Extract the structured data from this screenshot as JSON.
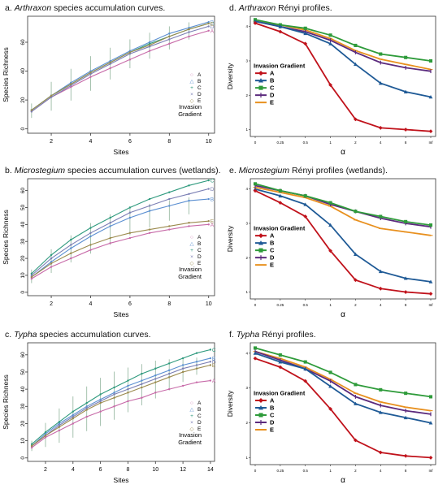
{
  "colors": {
    "A": "#c0121b",
    "B": "#1f5a96",
    "C": "#2e9b3a",
    "D": "#5b2a7d",
    "E": "#e8901e"
  },
  "acc_colors": {
    "A": "#c76aa8",
    "B": "#5b8fd1",
    "C": "#2f9a7e",
    "D": "#7b7fb4",
    "E": "#9b8a4d"
  },
  "panels": [
    {
      "id": "a",
      "prefix": "a. ",
      "italic": "Arthraxon",
      "suffix": " species accumulation curves.",
      "chart_data": {
        "type": "line",
        "xlabel": "Sites",
        "ylabel": "Species Richness",
        "xlim": [
          0.8,
          10.3
        ],
        "ylim": [
          -3,
          78
        ],
        "xticks": [
          2,
          4,
          6,
          8,
          10
        ],
        "yticks": [
          0,
          20,
          40,
          60
        ],
        "legend_title": [
          "Invasion",
          "Gradient"
        ],
        "legend_items": [
          {
            "label": "A",
            "symbol": "○"
          },
          {
            "label": "B",
            "symbol": "△"
          },
          {
            "label": "C",
            "symbol": "+"
          },
          {
            "label": "D",
            "symbol": "×"
          },
          {
            "label": "E",
            "symbol": "◇"
          }
        ],
        "x": [
          1,
          2,
          3,
          4,
          5,
          6,
          7,
          8,
          9,
          10
        ],
        "err": [
          5,
          10,
          11,
          12,
          11,
          10,
          9,
          8,
          6,
          0
        ],
        "series": [
          {
            "key": "A",
            "values": [
              12,
              22,
              29,
              36,
              42,
              48,
              54,
              59,
              64,
              68
            ]
          },
          {
            "key": "B",
            "values": [
              13,
              23,
              32,
              40,
              47,
              54,
              60,
              66,
              70,
              74
            ]
          },
          {
            "key": "C",
            "values": [
              13,
              23,
              31,
              39,
              46,
              53,
              59,
              64,
              69,
              73
            ]
          },
          {
            "key": "D",
            "values": [
              12,
              22,
              30,
              38,
              45,
              52,
              57,
              62,
              67,
              71
            ]
          },
          {
            "key": "E",
            "values": [
              13,
              23,
              31,
              39,
              46,
              53,
              58,
              64,
              69,
              73
            ]
          }
        ]
      }
    },
    {
      "id": "d",
      "prefix": "d. ",
      "italic": "Arthraxon",
      "suffix": " Rényi profiles.",
      "chart_data": {
        "type": "line",
        "xlabel": "α",
        "ylabel": "Diversity",
        "xticks": [
          "0",
          "0.25",
          "0.5",
          "1",
          "2",
          "4",
          "8",
          "Inf"
        ],
        "ylim": [
          0.8,
          4.3
        ],
        "yticks": [
          1,
          2,
          3,
          4
        ],
        "legend_title": "Invasion Gradient",
        "legend_items": [
          "A",
          "B",
          "C",
          "D",
          "E"
        ],
        "series": [
          {
            "key": "A",
            "values": [
              4.1,
              3.85,
              3.5,
              2.3,
              1.3,
              1.05,
              1.0,
              0.95
            ]
          },
          {
            "key": "B",
            "values": [
              4.15,
              4.0,
              3.8,
              3.5,
              2.9,
              2.35,
              2.1,
              1.95
            ]
          },
          {
            "key": "C",
            "values": [
              4.2,
              4.05,
              3.95,
              3.75,
              3.45,
              3.2,
              3.1,
              3.0
            ]
          },
          {
            "key": "D",
            "values": [
              4.15,
              4.0,
              3.85,
              3.6,
              3.25,
              2.95,
              2.8,
              2.7
            ]
          },
          {
            "key": "E",
            "values": [
              4.15,
              4.05,
              3.9,
              3.65,
              3.3,
              3.05,
              2.9,
              2.75
            ]
          }
        ]
      }
    },
    {
      "id": "b",
      "prefix": "b. ",
      "italic": "Microstegium",
      "suffix": " species accumulation curves (wetlands).",
      "chart_data": {
        "type": "line",
        "xlabel": "Sites",
        "ylabel": "Species Richness",
        "xlim": [
          0.8,
          10.3
        ],
        "ylim": [
          -2,
          67
        ],
        "xticks": [
          2,
          4,
          6,
          8,
          10
        ],
        "yticks": [
          0,
          10,
          20,
          30,
          40,
          50,
          60
        ],
        "legend_title": [
          "Invasion",
          "Gradient"
        ],
        "legend_items": [
          {
            "label": "A",
            "symbol": "○"
          },
          {
            "label": "B",
            "symbol": "△"
          },
          {
            "label": "C",
            "symbol": "+"
          },
          {
            "label": "D",
            "symbol": "×"
          },
          {
            "label": "E",
            "symbol": "◇"
          }
        ],
        "x": [
          1,
          2,
          3,
          4,
          5,
          6,
          7,
          8,
          9,
          10
        ],
        "err": [
          4,
          7,
          8,
          9,
          9,
          8,
          7,
          6,
          5,
          0
        ],
        "series": [
          {
            "key": "A",
            "values": [
              8,
              15,
              20,
              25,
              29,
              32,
              35,
              37,
              39,
              40
            ]
          },
          {
            "key": "B",
            "values": [
              9,
              18,
              26,
              33,
              39,
              44,
              48,
              51,
              54,
              55
            ]
          },
          {
            "key": "C",
            "values": [
              11,
              22,
              31,
              38,
              44,
              50,
              55,
              59,
              63,
              66
            ]
          },
          {
            "key": "D",
            "values": [
              10,
              20,
              28,
              35,
              41,
              47,
              51,
              55,
              58,
              61
            ]
          },
          {
            "key": "E",
            "values": [
              9,
              17,
              23,
              28,
              32,
              35,
              37,
              39,
              41,
              42
            ]
          }
        ]
      }
    },
    {
      "id": "e",
      "prefix": "e. ",
      "italic": "Microstegium",
      "suffix": " Rényi profiles (wetlands).",
      "chart_data": {
        "type": "line",
        "xlabel": "α",
        "ylabel": "Diversity",
        "xticks": [
          "0",
          "0.25",
          "0.5",
          "1",
          "2",
          "4",
          "8",
          "Inf"
        ],
        "ylim": [
          0.8,
          4.3
        ],
        "yticks": [
          1,
          2,
          3,
          4
        ],
        "legend_title": "Invasion Gradient",
        "legend_items": [
          "A",
          "B",
          "C",
          "D",
          "E"
        ],
        "series": [
          {
            "key": "A",
            "values": [
              3.95,
              3.6,
              3.2,
              2.2,
              1.35,
              1.1,
              1.0,
              0.95
            ]
          },
          {
            "key": "B",
            "values": [
              4.0,
              3.8,
              3.55,
              2.95,
              2.1,
              1.6,
              1.4,
              1.3
            ]
          },
          {
            "key": "C",
            "values": [
              4.15,
              3.95,
              3.8,
              3.6,
              3.35,
              3.2,
              3.05,
              2.95
            ]
          },
          {
            "key": "D",
            "values": [
              4.1,
              3.95,
              3.8,
              3.55,
              3.35,
              3.15,
              3.0,
              2.9
            ]
          },
          {
            "key": "E",
            "values": [
              4.05,
              3.9,
              3.75,
              3.5,
              3.1,
              2.85,
              2.75,
              2.65
            ]
          }
        ]
      }
    },
    {
      "id": "c",
      "prefix": "c. ",
      "italic": "Typha",
      "suffix": " species accumulation curves.",
      "chart_data": {
        "type": "line",
        "xlabel": "Sites",
        "ylabel": "Species Richness",
        "xlim": [
          0.7,
          14.3
        ],
        "ylim": [
          -2,
          67
        ],
        "xticks": [
          2,
          4,
          6,
          8,
          10,
          12,
          14
        ],
        "yticks": [
          0,
          10,
          20,
          30,
          40,
          50,
          60
        ],
        "legend_title": [
          "Invasion",
          "Gradient"
        ],
        "legend_items": [
          {
            "label": "A",
            "symbol": "○"
          },
          {
            "label": "B",
            "symbol": "△"
          },
          {
            "label": "C",
            "symbol": "+"
          },
          {
            "label": "D",
            "symbol": "×"
          },
          {
            "label": "E",
            "symbol": "◇"
          }
        ],
        "x": [
          1,
          2,
          3,
          4,
          5,
          6,
          7,
          8,
          9,
          10,
          11,
          12,
          13,
          14
        ],
        "err": [
          3,
          7,
          10,
          12,
          13,
          14,
          14,
          13,
          12,
          11,
          9,
          7,
          5,
          0
        ],
        "series": [
          {
            "key": "A",
            "values": [
              6,
              12,
              16,
              20,
              24,
              27,
              30,
              33,
              35,
              38,
              40,
              42,
              44,
              45
            ]
          },
          {
            "key": "B",
            "values": [
              7,
              14,
              20,
              25,
              30,
              34,
              38,
              42,
              45,
              48,
              51,
              54,
              56,
              58
            ]
          },
          {
            "key": "C",
            "values": [
              8,
              15,
              21,
              27,
              32,
              37,
              41,
              45,
              49,
              52,
              55,
              58,
              61,
              63
            ]
          },
          {
            "key": "D",
            "values": [
              7,
              13,
              19,
              24,
              29,
              33,
              37,
              40,
              43,
              46,
              49,
              52,
              54,
              56
            ]
          },
          {
            "key": "E",
            "values": [
              7,
              13,
              18,
              23,
              28,
              32,
              35,
              38,
              41,
              44,
              47,
              50,
              52,
              54
            ]
          }
        ]
      }
    },
    {
      "id": "f",
      "prefix": "f. ",
      "italic": "Typha",
      "suffix": " Rényi profiles.",
      "chart_data": {
        "type": "line",
        "xlabel": "α",
        "ylabel": "Diversity",
        "xticks": [
          "0",
          "0.25",
          "0.5",
          "1",
          "2",
          "4",
          "8",
          "Inf"
        ],
        "ylim": [
          0.8,
          4.3
        ],
        "yticks": [
          1,
          2,
          3,
          4
        ],
        "legend_title": "Invasion Gradient",
        "legend_items": [
          "A",
          "B",
          "C",
          "D",
          "E"
        ],
        "series": [
          {
            "key": "A",
            "values": [
              3.85,
              3.6,
              3.2,
              2.4,
              1.5,
              1.15,
              1.05,
              1.0
            ]
          },
          {
            "key": "B",
            "values": [
              4.0,
              3.75,
              3.55,
              3.05,
              2.55,
              2.3,
              2.15,
              2.0
            ]
          },
          {
            "key": "C",
            "values": [
              4.15,
              3.95,
              3.75,
              3.45,
              3.1,
              2.95,
              2.85,
              2.75
            ]
          },
          {
            "key": "D",
            "values": [
              4.05,
              3.8,
              3.55,
              3.2,
              2.75,
              2.5,
              2.35,
              2.25
            ]
          },
          {
            "key": "E",
            "values": [
              4.05,
              3.85,
              3.6,
              3.25,
              2.85,
              2.6,
              2.45,
              2.35
            ]
          }
        ]
      }
    }
  ]
}
